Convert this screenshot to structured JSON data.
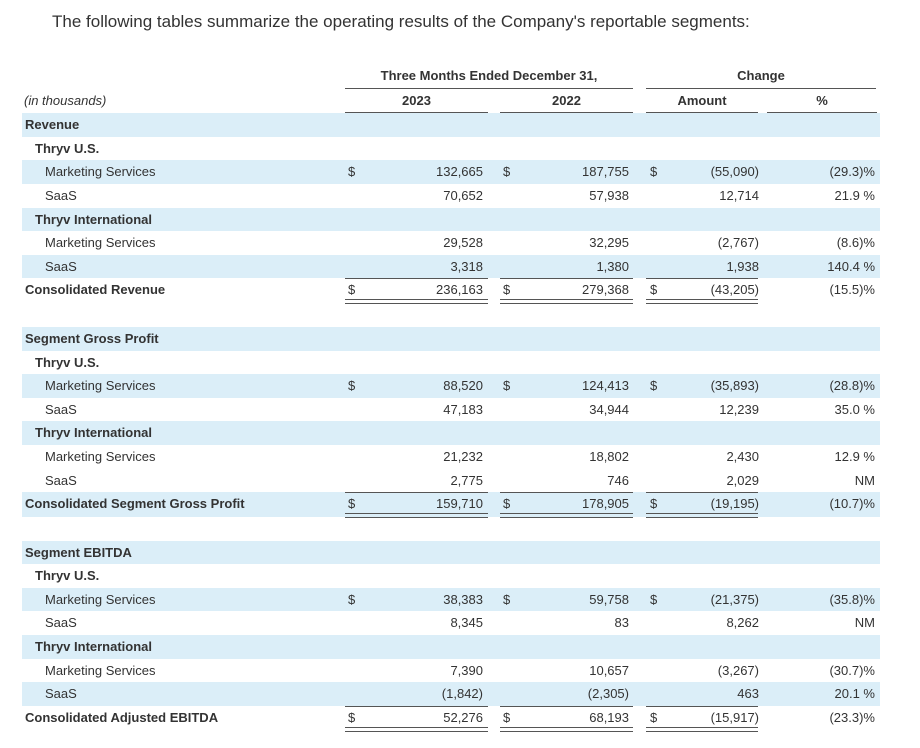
{
  "intro": "The following tables summarize the operating results of the Company's reportable segments:",
  "header": {
    "period": "Three Months Ended December 31,",
    "change": "Change",
    "units": "(in thousands)",
    "year1": "2023",
    "year2": "2022",
    "amount": "Amount",
    "percent": "%"
  },
  "currency_symbol": "$",
  "rows": [
    {
      "label": "Revenue",
      "level": 1,
      "bold": true
    },
    {
      "label": "Thryv U.S.",
      "level": 2,
      "bold": true
    },
    {
      "label": "Marketing Services",
      "level": 3,
      "d": true,
      "v1": "132,665",
      "v2": "187,755",
      "v3": "(55,090)",
      "pct": "(29.3)%"
    },
    {
      "label": "SaaS",
      "level": 3,
      "v1": "70,652",
      "v2": "57,938",
      "v3": "12,714",
      "pct": "21.9 %"
    },
    {
      "label": "Thryv International",
      "level": 2,
      "bold": true
    },
    {
      "label": "Marketing Services",
      "level": 3,
      "v1": "29,528",
      "v2": "32,295",
      "v3": "(2,767)",
      "pct": "(8.6)%"
    },
    {
      "label": "SaaS",
      "level": 3,
      "v1": "3,318",
      "v2": "1,380",
      "v3": "1,938",
      "pct": "140.4 %"
    },
    {
      "label": "Consolidated Revenue",
      "level": 1,
      "bold": true,
      "d": true,
      "total": true,
      "v1": "236,163",
      "v2": "279,368",
      "v3": "(43,205)",
      "pct": "(15.5)%"
    },
    {
      "label": "",
      "level": 1
    },
    {
      "label": "Segment Gross Profit",
      "level": 1,
      "bold": true
    },
    {
      "label": "Thryv U.S.",
      "level": 2,
      "bold": true
    },
    {
      "label": "Marketing Services",
      "level": 3,
      "d": true,
      "v1": "88,520",
      "v2": "124,413",
      "v3": "(35,893)",
      "pct": "(28.8)%"
    },
    {
      "label": "SaaS",
      "level": 3,
      "v1": "47,183",
      "v2": "34,944",
      "v3": "12,239",
      "pct": "35.0 %"
    },
    {
      "label": "Thryv International",
      "level": 2,
      "bold": true
    },
    {
      "label": "Marketing Services",
      "level": 3,
      "v1": "21,232",
      "v2": "18,802",
      "v3": "2,430",
      "pct": "12.9 %"
    },
    {
      "label": "SaaS",
      "level": 3,
      "v1": "2,775",
      "v2": "746",
      "v3": "2,029",
      "pct": "NM"
    },
    {
      "label": "Consolidated Segment Gross Profit",
      "level": 1,
      "bold": true,
      "d": true,
      "total": true,
      "v1": "159,710",
      "v2": "178,905",
      "v3": "(19,195)",
      "pct": "(10.7)%"
    },
    {
      "label": "",
      "level": 1
    },
    {
      "label": "Segment EBITDA",
      "level": 1,
      "bold": true
    },
    {
      "label": "Thryv U.S.",
      "level": 2,
      "bold": true
    },
    {
      "label": "Marketing Services",
      "level": 3,
      "d": true,
      "v1": "38,383",
      "v2": "59,758",
      "v3": "(21,375)",
      "pct": "(35.8)%"
    },
    {
      "label": "SaaS",
      "level": 3,
      "v1": "8,345",
      "v2": "83",
      "v3": "8,262",
      "pct": "NM"
    },
    {
      "label": "Thryv International",
      "level": 2,
      "bold": true
    },
    {
      "label": "Marketing Services",
      "level": 3,
      "v1": "7,390",
      "v2": "10,657",
      "v3": "(3,267)",
      "pct": "(30.7)%"
    },
    {
      "label": "SaaS",
      "level": 3,
      "v1": "(1,842)",
      "v2": "(2,305)",
      "v3": "463",
      "pct": "20.1 %"
    },
    {
      "label": "Consolidated Adjusted EBITDA",
      "level": 1,
      "bold": true,
      "d": true,
      "total": true,
      "v1": "52,276",
      "v2": "68,193",
      "v3": "(15,917)",
      "pct": "(23.3)%"
    }
  ]
}
